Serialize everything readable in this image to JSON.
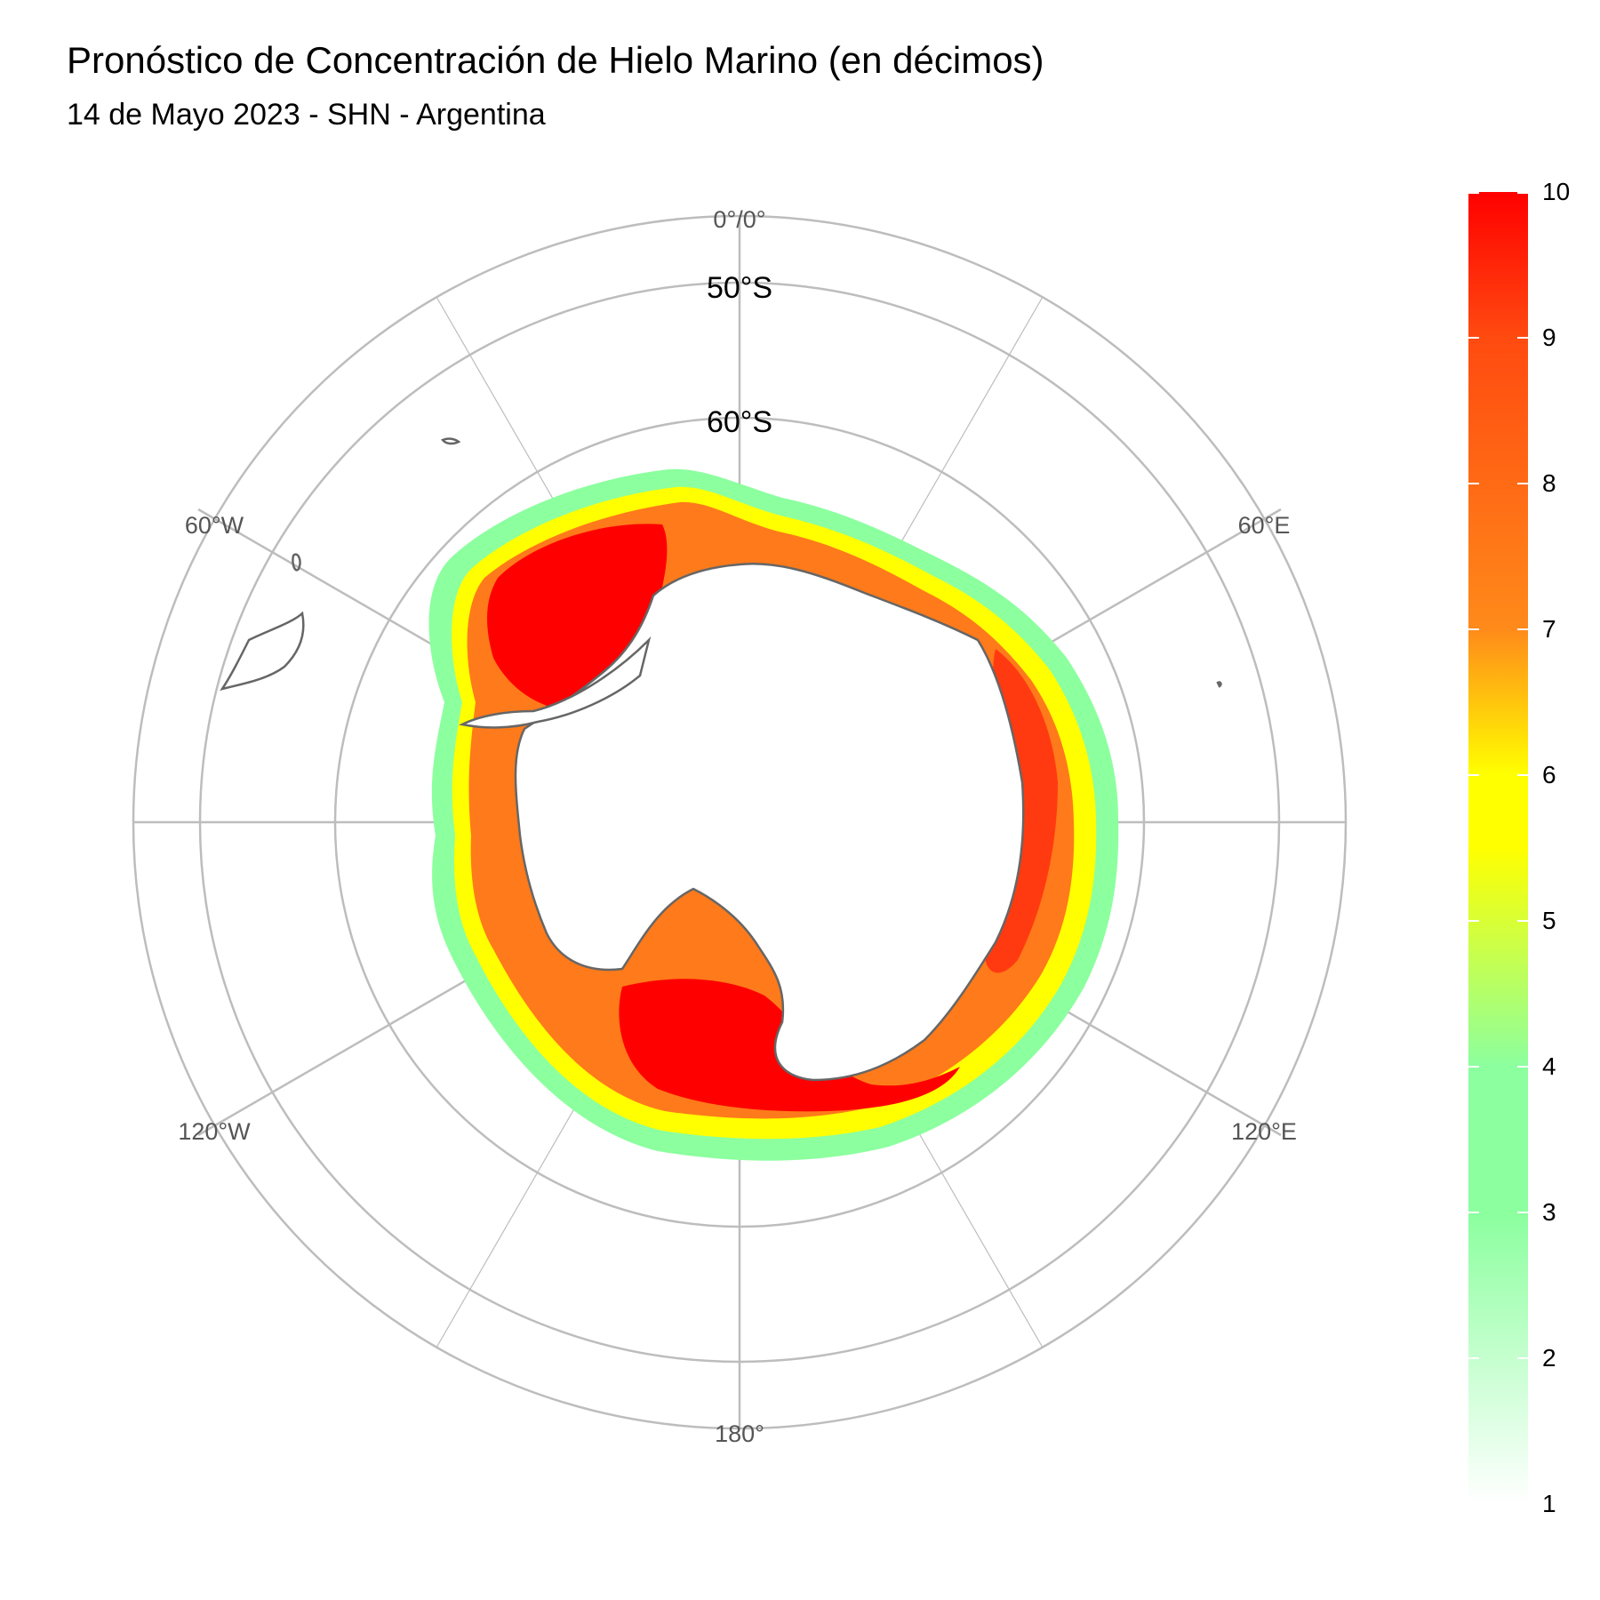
{
  "header": {
    "title": "Pronóstico de Concentración de Hielo Marino (en décimos)",
    "subtitle": "14 de Mayo 2023 - SHN - Argentina"
  },
  "map": {
    "projection": "south polar stereographic",
    "latitude_labels": [
      "50°S",
      "60°S"
    ],
    "longitude_labels": {
      "top": "0°/0°",
      "upper_left": "60°W",
      "upper_right": "60°E",
      "lower_left": "120°W",
      "lower_right": "120°E",
      "bottom": "180°"
    }
  },
  "legend": {
    "ticks": [
      "1",
      "2",
      "3",
      "4",
      "5",
      "6",
      "7",
      "8",
      "9",
      "10"
    ],
    "colors": {
      "low": "#ffffff",
      "light_green": "#8cff9f",
      "yellow": "#ffff00",
      "orange": "#ff8a1a",
      "red_orange": "#ff4a10",
      "red": "#ff0000"
    }
  }
}
